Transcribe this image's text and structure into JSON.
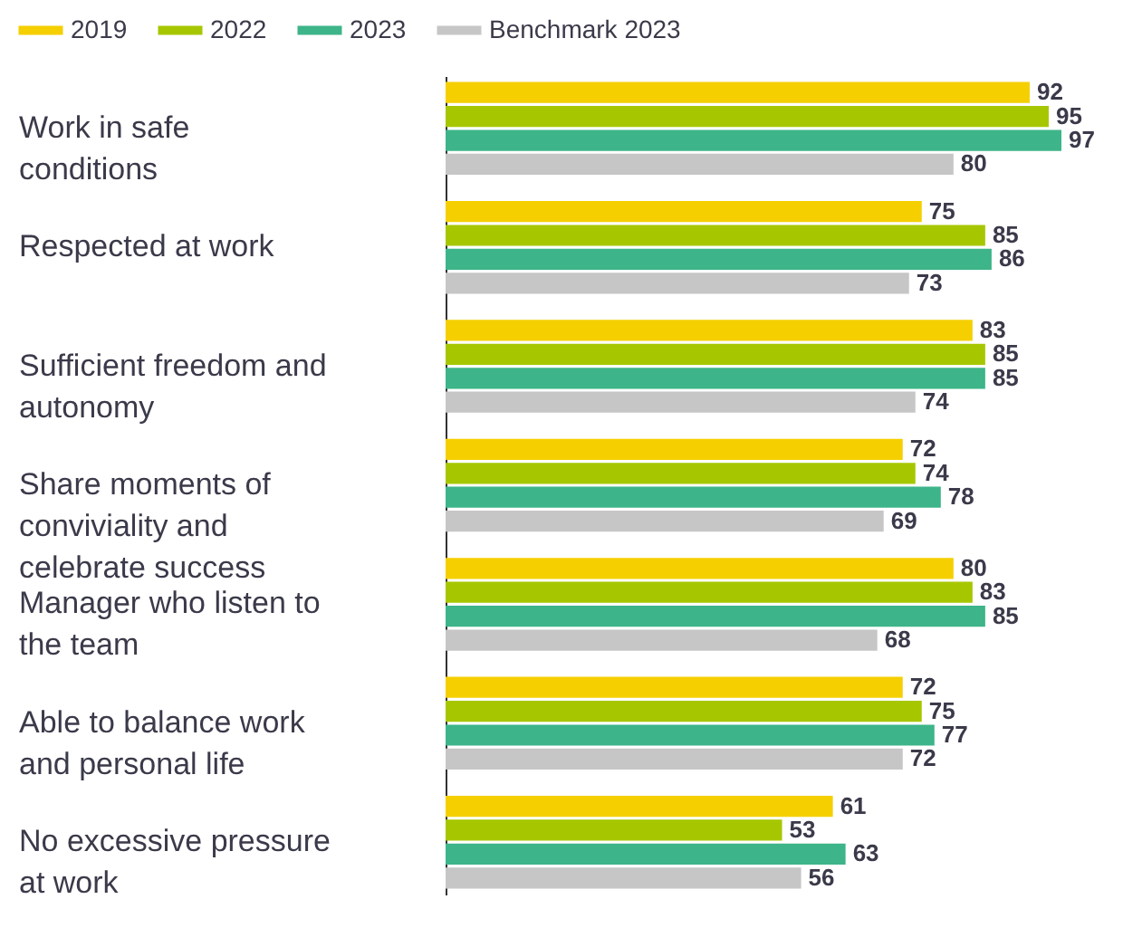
{
  "chart_data": {
    "type": "bar",
    "orientation": "horizontal",
    "data_labels": true,
    "legend": "top left",
    "grid": false,
    "categories": [
      "Work in safe conditions",
      "Respected at work",
      "Sufficient freedom and autonomy",
      "Share moments of conviviality and celebrate success",
      "Manager who listen to the team",
      "Able to balance work and personal life",
      "No excessive pressure at work"
    ],
    "series": [
      {
        "name": "2019",
        "color": "#f5cf00",
        "values": [
          92,
          75,
          83,
          72,
          80,
          72,
          61
        ]
      },
      {
        "name": "2022",
        "color": "#a6c700",
        "values": [
          95,
          85,
          85,
          74,
          83,
          75,
          53
        ]
      },
      {
        "name": "2023",
        "color": "#3db489",
        "values": [
          97,
          86,
          85,
          78,
          85,
          77,
          63
        ]
      },
      {
        "name": "Benchmark 2023",
        "color": "#c6c6c6",
        "values": [
          80,
          73,
          74,
          69,
          68,
          72,
          56
        ]
      }
    ]
  }
}
